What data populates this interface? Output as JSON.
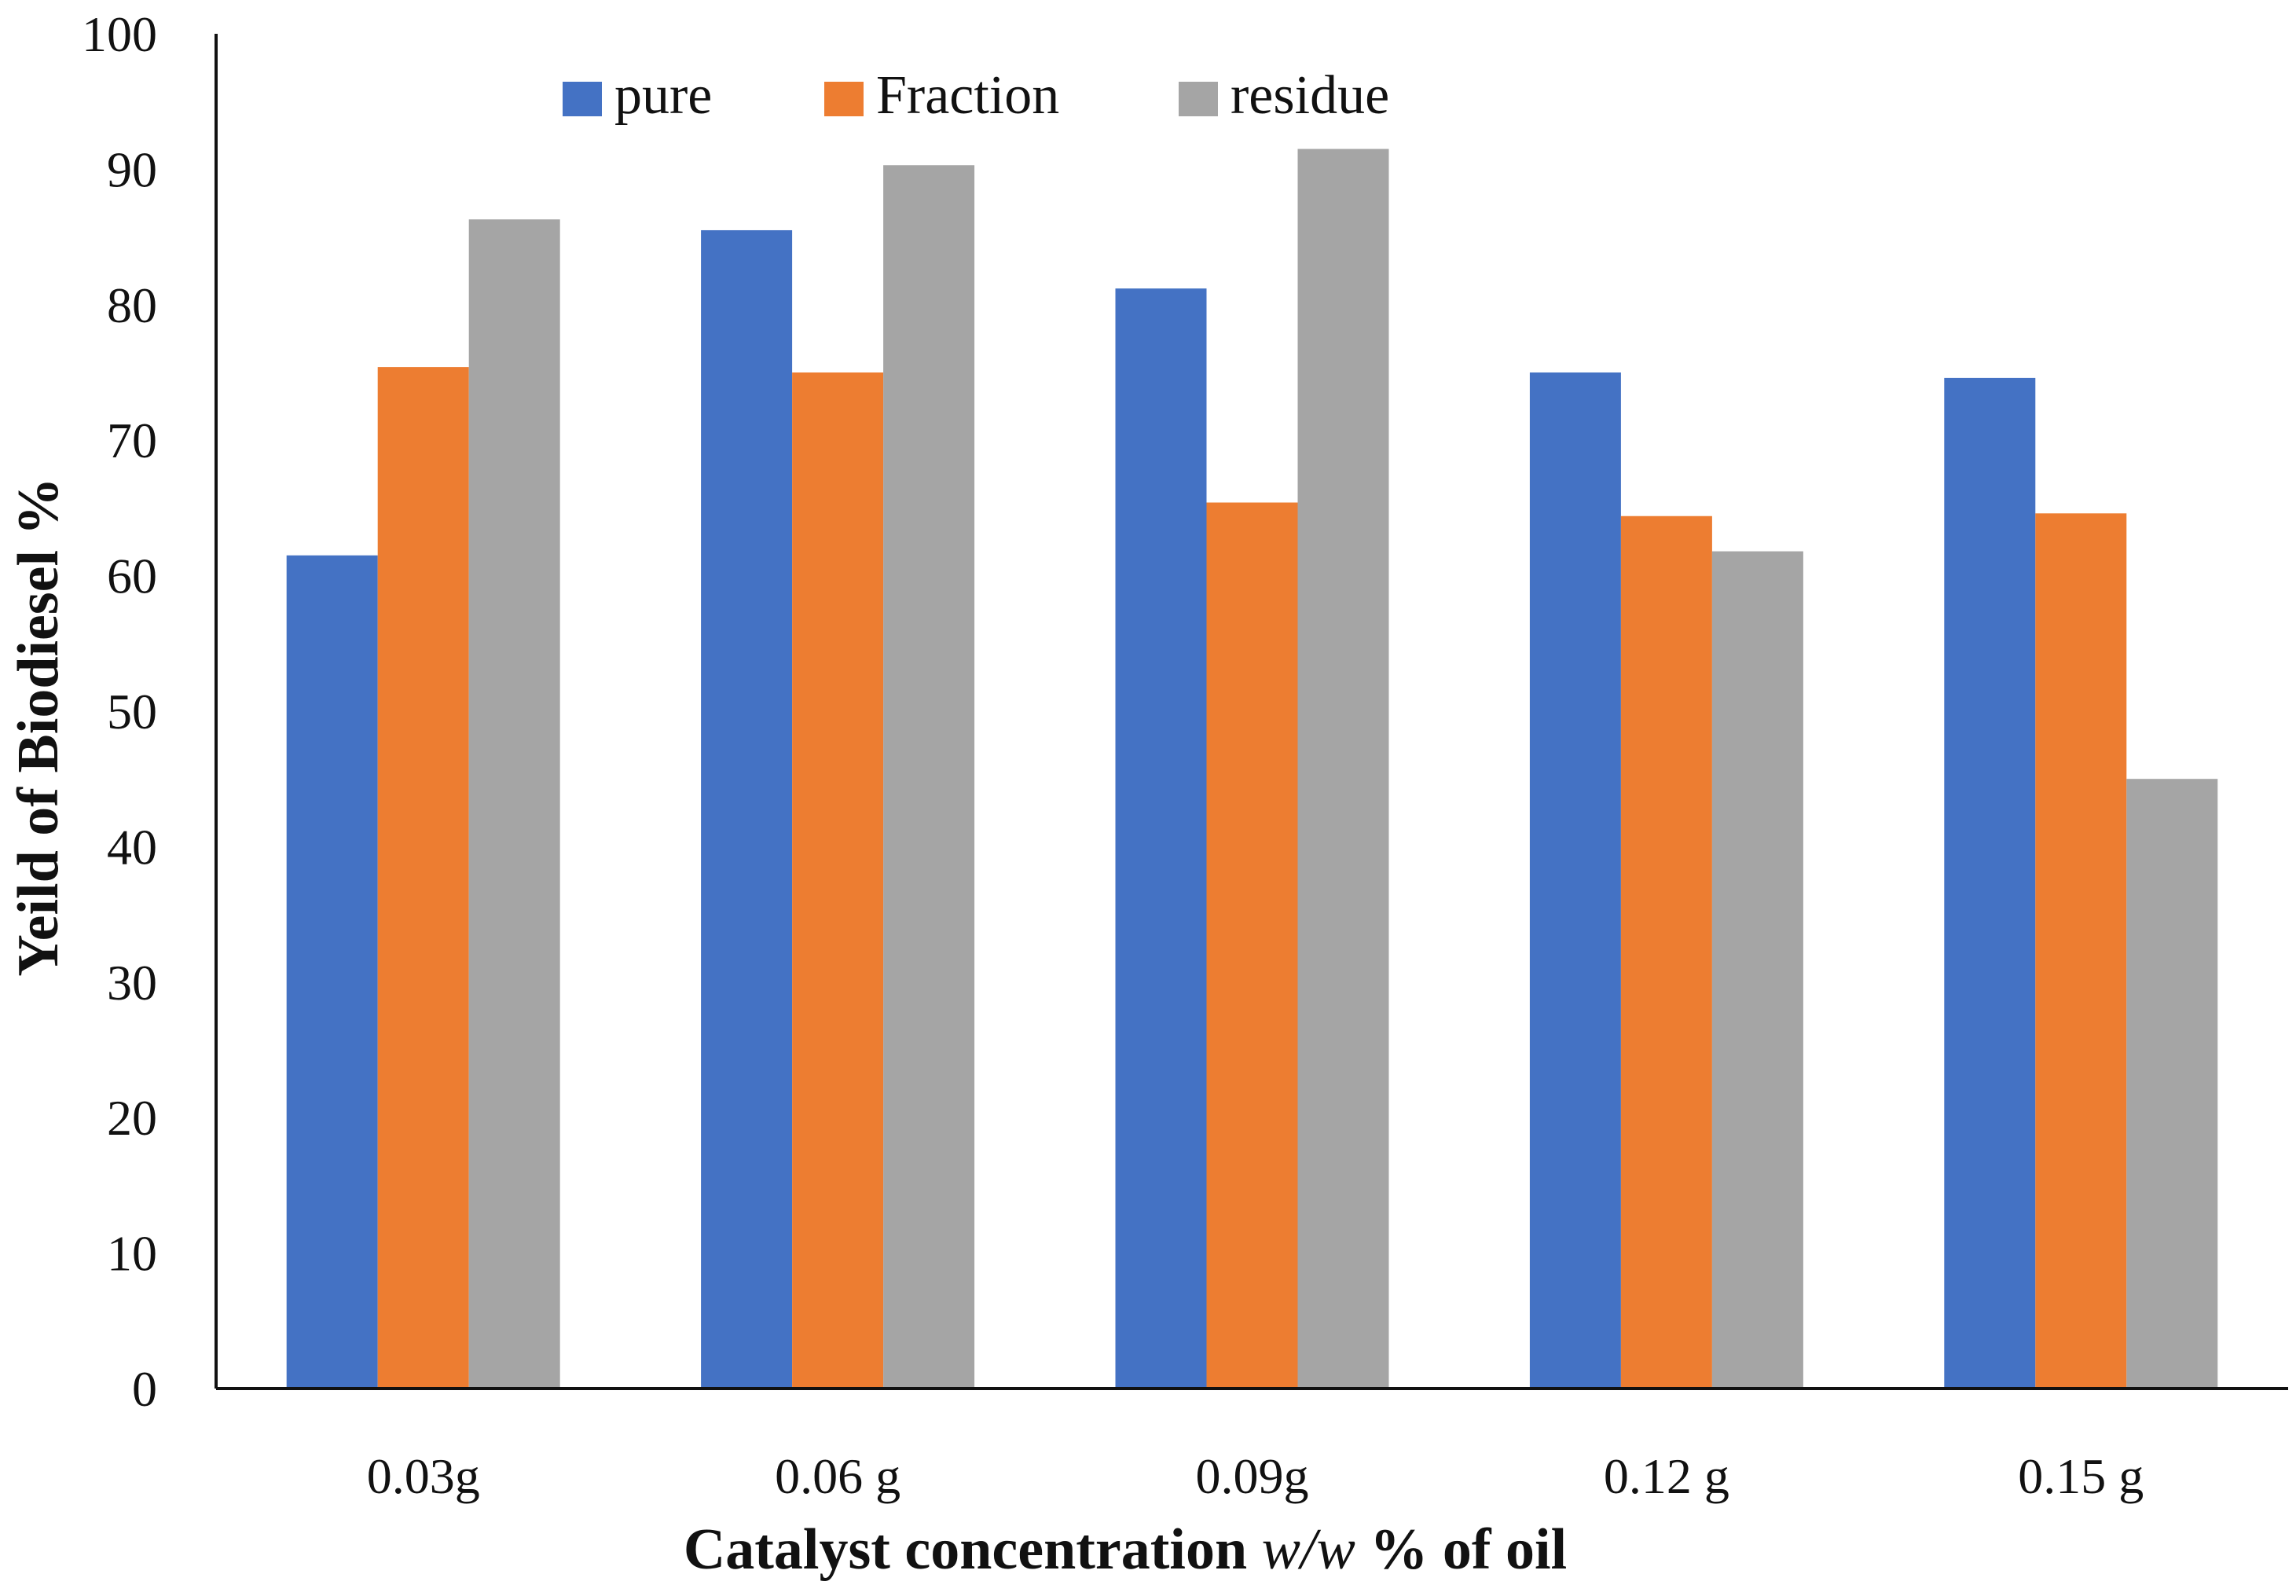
{
  "chart_data": {
    "type": "bar",
    "title": "",
    "xlabel_parts": [
      "Catalyst concentration ",
      "w/w",
      " % of oil"
    ],
    "ylabel": "Yeild of Biodiesel %",
    "categories": [
      "0.03g",
      "0.06 g",
      "0.09g",
      "0.12 g",
      "0.15 g"
    ],
    "ylim": [
      0,
      100
    ],
    "yticks": [
      "0",
      "10",
      "20",
      "30",
      "40",
      "50",
      "60",
      "70",
      "80",
      "90",
      "100"
    ],
    "grid": false,
    "legend_position": "top",
    "series": [
      {
        "name": "pure",
        "color": "#4472C4",
        "values": [
          61.5,
          85.5,
          81.2,
          75.0,
          74.6
        ]
      },
      {
        "name": "Fraction",
        "color": "#ED7D31",
        "values": [
          75.4,
          75.0,
          65.4,
          64.4,
          64.6
        ]
      },
      {
        "name": "residue",
        "color": "#A5A5A5",
        "values": [
          86.3,
          90.3,
          91.5,
          61.8,
          45.0
        ]
      }
    ]
  }
}
